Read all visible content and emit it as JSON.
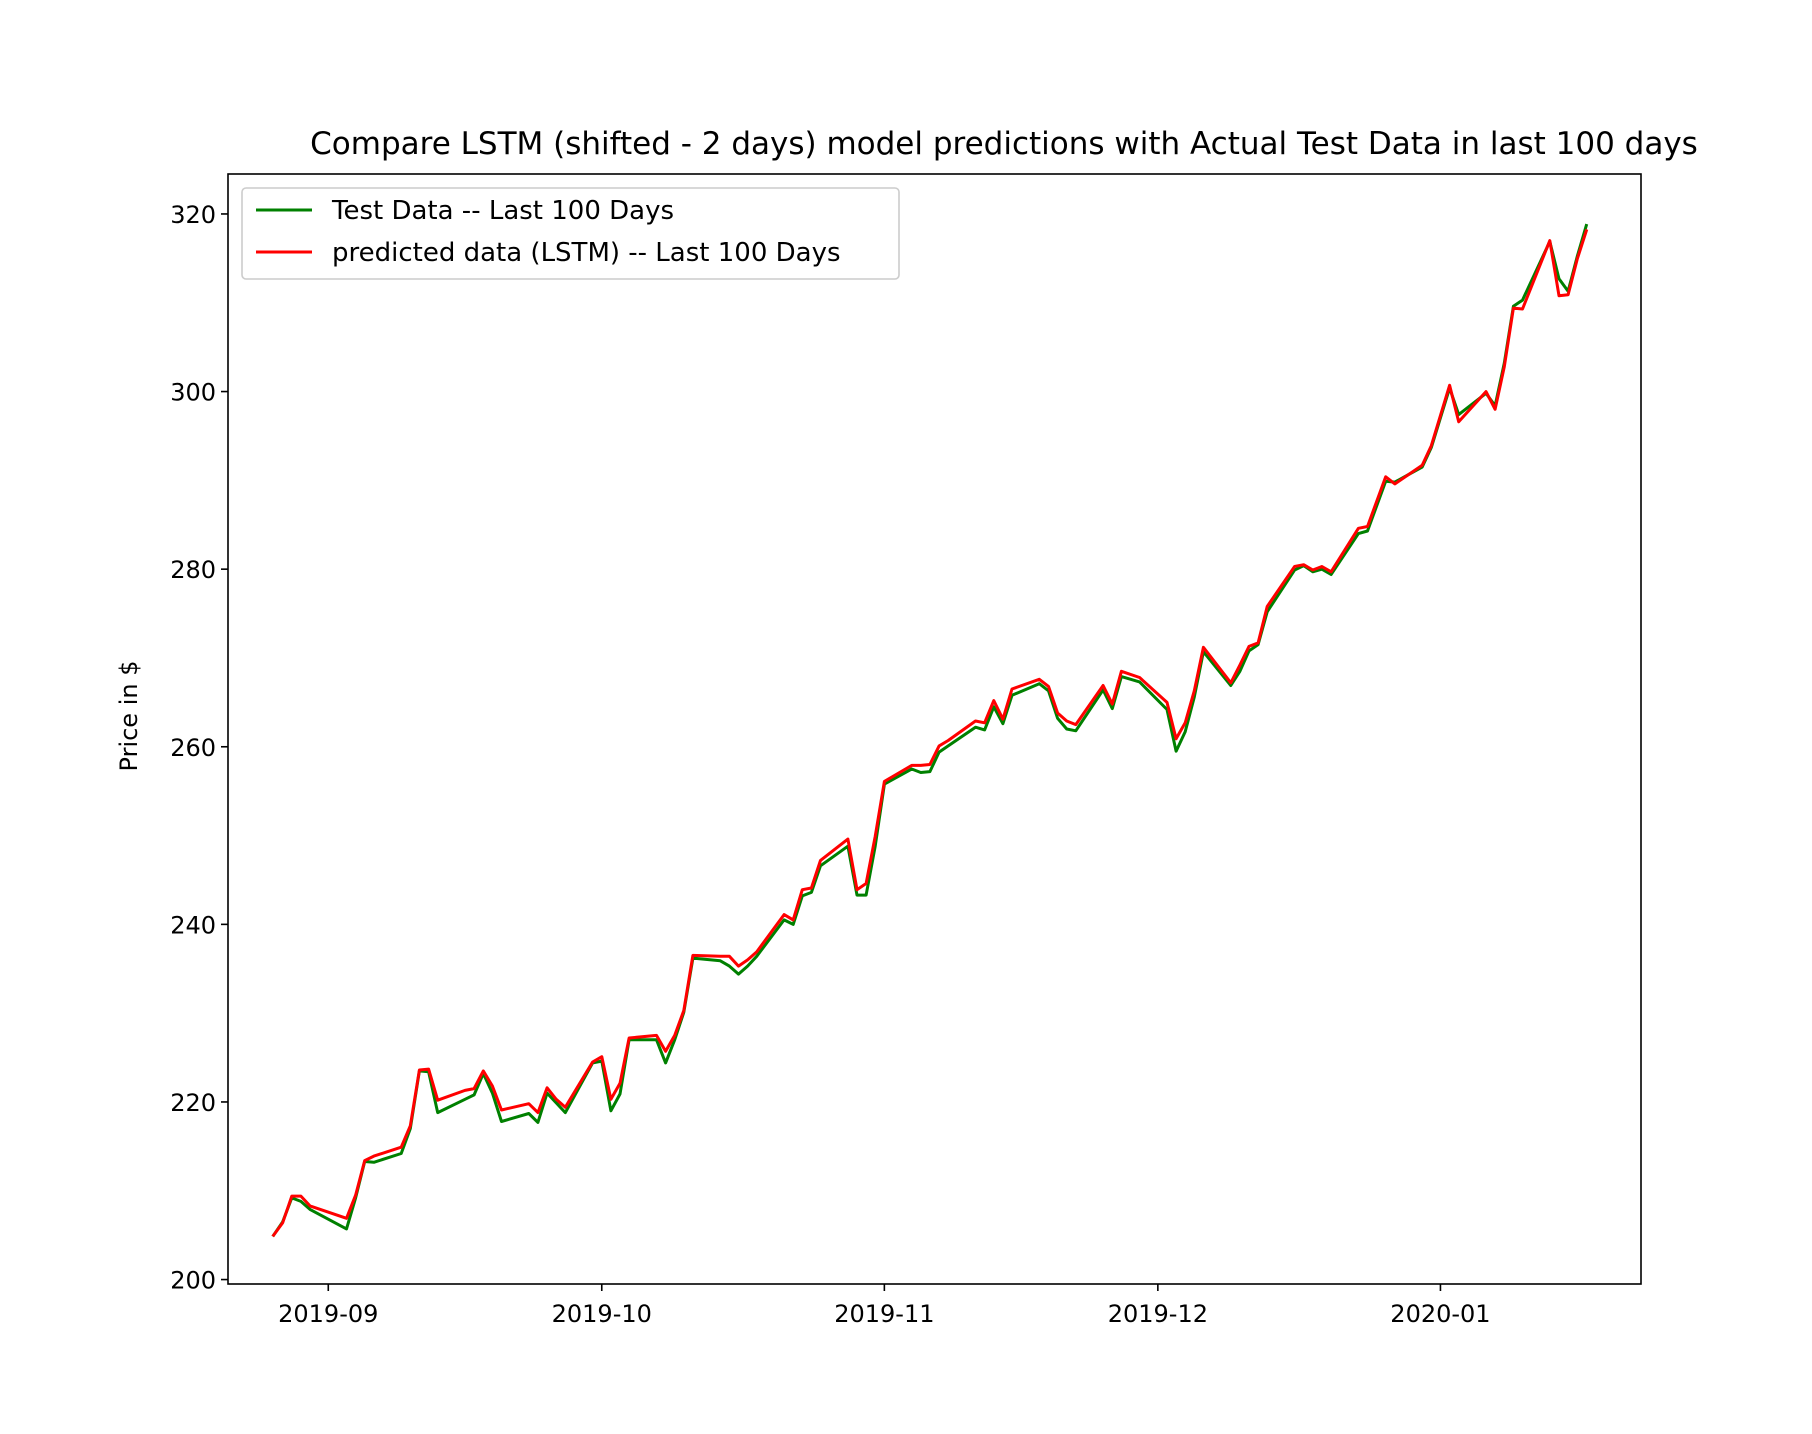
{
  "chart_data": {
    "type": "line",
    "title": "Compare LSTM (shifted - 2 days) model predictions with Actual Test Data in last 100 days",
    "xlabel": "",
    "ylabel": "Price in $",
    "ylim": [
      199.5,
      324.5
    ],
    "xlim": [
      "2019-08-21",
      "2020-01-23"
    ],
    "grid": false,
    "legend_position": "upper-left",
    "xticks": [
      "2019-09",
      "2019-10",
      "2019-11",
      "2019-12",
      "2020-01"
    ],
    "xtick_dates": [
      "2019-09-01",
      "2019-10-01",
      "2019-11-01",
      "2019-12-01",
      "2020-01-01"
    ],
    "yticks": [
      200,
      220,
      240,
      260,
      280,
      300,
      320
    ],
    "colors": {
      "test": "#008000",
      "predicted": "#ff0000"
    },
    "x": [
      "2019-08-26",
      "2019-08-27",
      "2019-08-28",
      "2019-08-29",
      "2019-08-30",
      "2019-09-03",
      "2019-09-04",
      "2019-09-05",
      "2019-09-06",
      "2019-09-09",
      "2019-09-10",
      "2019-09-11",
      "2019-09-12",
      "2019-09-13",
      "2019-09-16",
      "2019-09-17",
      "2019-09-18",
      "2019-09-19",
      "2019-09-20",
      "2019-09-23",
      "2019-09-24",
      "2019-09-25",
      "2019-09-26",
      "2019-09-27",
      "2019-09-30",
      "2019-10-01",
      "2019-10-02",
      "2019-10-03",
      "2019-10-04",
      "2019-10-07",
      "2019-10-08",
      "2019-10-09",
      "2019-10-10",
      "2019-10-11",
      "2019-10-14",
      "2019-10-15",
      "2019-10-16",
      "2019-10-17",
      "2019-10-18",
      "2019-10-21",
      "2019-10-22",
      "2019-10-23",
      "2019-10-24",
      "2019-10-25",
      "2019-10-28",
      "2019-10-29",
      "2019-10-30",
      "2019-10-31",
      "2019-11-01",
      "2019-11-04",
      "2019-11-05",
      "2019-11-06",
      "2019-11-07",
      "2019-11-08",
      "2019-11-11",
      "2019-11-12",
      "2019-11-13",
      "2019-11-14",
      "2019-11-15",
      "2019-11-18",
      "2019-11-19",
      "2019-11-20",
      "2019-11-21",
      "2019-11-22",
      "2019-11-25",
      "2019-11-26",
      "2019-11-27",
      "2019-11-29",
      "2019-12-02",
      "2019-12-03",
      "2019-12-04",
      "2019-12-05",
      "2019-12-06",
      "2019-12-09",
      "2019-12-10",
      "2019-12-11",
      "2019-12-12",
      "2019-12-13",
      "2019-12-16",
      "2019-12-17",
      "2019-12-18",
      "2019-12-19",
      "2019-12-20",
      "2019-12-23",
      "2019-12-24",
      "2019-12-26",
      "2019-12-27",
      "2019-12-30",
      "2019-12-31",
      "2020-01-02",
      "2020-01-03",
      "2020-01-06",
      "2020-01-07",
      "2020-01-08",
      "2020-01-09",
      "2020-01-10",
      "2020-01-13",
      "2020-01-14",
      "2020-01-15",
      "2020-01-16",
      "2020-01-17"
    ],
    "series": [
      {
        "name": "Test Data -- Last 100 Days",
        "key": "test",
        "values": [
          205.0,
          206.5,
          209.2,
          208.8,
          207.9,
          205.7,
          209.2,
          213.3,
          213.2,
          214.2,
          217.0,
          223.5,
          223.4,
          218.8,
          220.3,
          220.8,
          223.2,
          221.0,
          217.8,
          218.7,
          217.7,
          221.0,
          219.9,
          218.8,
          224.4,
          224.6,
          219.0,
          220.9,
          227.0,
          227.0,
          224.4,
          227.0,
          230.1,
          236.2,
          235.9,
          235.3,
          234.4,
          235.3,
          236.4,
          240.5,
          240.0,
          243.2,
          243.6,
          246.6,
          248.8,
          243.3,
          243.3,
          248.8,
          255.8,
          257.5,
          257.1,
          257.2,
          259.4,
          260.1,
          262.2,
          261.9,
          264.5,
          262.6,
          265.8,
          267.1,
          266.3,
          263.2,
          262.0,
          261.8,
          266.4,
          264.3,
          267.9,
          267.3,
          264.2,
          259.5,
          261.7,
          265.6,
          270.7,
          266.9,
          268.5,
          270.8,
          271.5,
          275.2,
          279.9,
          280.4,
          279.7,
          280.0,
          279.4,
          284.0,
          284.3,
          289.9,
          289.8,
          291.5,
          293.7,
          300.4,
          297.4,
          299.8,
          298.4,
          303.2,
          309.6,
          310.3,
          316.9,
          312.7,
          311.3,
          315.2,
          318.7
        ]
      },
      {
        "name": "predicted data (LSTM) -- Last 100 Days",
        "key": "predicted",
        "values": [
          205.0,
          206.4,
          209.4,
          209.4,
          208.3,
          206.9,
          209.5,
          213.4,
          213.9,
          214.9,
          217.3,
          223.6,
          223.7,
          220.2,
          221.3,
          221.5,
          223.5,
          221.8,
          219.1,
          219.8,
          218.8,
          221.6,
          220.3,
          219.4,
          224.5,
          225.1,
          220.3,
          222.1,
          227.2,
          227.5,
          225.7,
          227.5,
          230.3,
          236.5,
          236.4,
          236.4,
          235.3,
          236.0,
          236.9,
          241.1,
          240.5,
          243.9,
          244.1,
          247.2,
          249.6,
          243.9,
          244.6,
          249.9,
          256.1,
          257.9,
          257.9,
          258.0,
          260.1,
          260.7,
          262.9,
          262.7,
          265.2,
          263.1,
          266.5,
          267.6,
          266.8,
          263.8,
          262.9,
          262.5,
          266.9,
          264.8,
          268.5,
          267.8,
          265.0,
          260.9,
          262.7,
          266.3,
          271.2,
          267.2,
          269.2,
          271.3,
          271.7,
          275.8,
          280.3,
          280.5,
          279.9,
          280.3,
          279.7,
          284.6,
          284.8,
          290.4,
          289.6,
          291.7,
          293.9,
          300.7,
          296.6,
          300.0,
          298.0,
          302.8,
          309.4,
          309.3,
          317.0,
          310.8,
          310.9,
          314.9,
          318.1
        ]
      }
    ]
  }
}
